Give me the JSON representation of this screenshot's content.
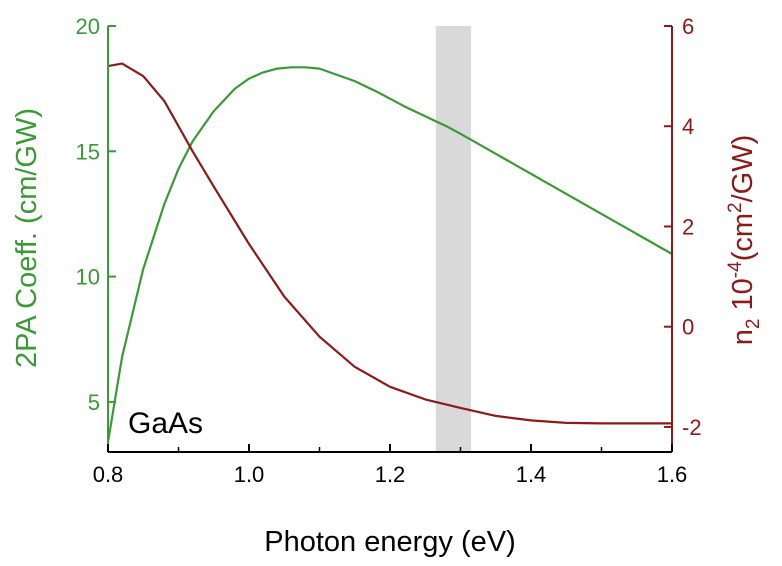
{
  "chart_data": {
    "type": "line",
    "annotation": "GaAs",
    "xlabel": "Photon energy (eV)",
    "ylabel_left": "2PA Coeff. (cm/GW)",
    "ylabel_right_parts": {
      "n": "n",
      "sub": "2",
      "mid": " 10",
      "sup1": "-4",
      "mid2": "(cm",
      "sup2": "2",
      "end": "/GW)"
    },
    "xlim": [
      0.8,
      1.6
    ],
    "ylim_left": [
      3,
      20
    ],
    "ylim_right": [
      -2.5,
      6
    ],
    "x_ticks": [
      "0.8",
      "1.0",
      "1.2",
      "1.4",
      "1.6"
    ],
    "y_left_ticks": [
      "5",
      "10",
      "15",
      "20"
    ],
    "y_right_ticks": [
      "-2",
      "0",
      "2",
      "4",
      "6"
    ],
    "shaded_band_x": [
      1.265,
      1.315
    ],
    "colors": {
      "left_axis": "#3a9a35",
      "right_axis": "#8b1a1a",
      "band": "#d9d9d9",
      "axis": "#000000"
    },
    "grid": false,
    "series": [
      {
        "axis": "left",
        "color": "#3a9a35",
        "x": [
          0.8,
          0.82,
          0.85,
          0.88,
          0.9,
          0.92,
          0.95,
          0.98,
          1.0,
          1.02,
          1.04,
          1.06,
          1.08,
          1.1,
          1.12,
          1.15,
          1.18,
          1.2,
          1.22,
          1.25,
          1.28,
          1.3,
          1.35,
          1.4,
          1.45,
          1.5,
          1.55,
          1.6
        ],
        "values": [
          3.4,
          6.8,
          10.3,
          12.9,
          14.3,
          15.4,
          16.6,
          17.5,
          17.9,
          18.15,
          18.3,
          18.35,
          18.35,
          18.3,
          18.1,
          17.8,
          17.4,
          17.1,
          16.8,
          16.4,
          16.0,
          15.7,
          14.9,
          14.1,
          13.3,
          12.5,
          11.7,
          10.9
        ]
      },
      {
        "axis": "right",
        "color": "#8b1a1a",
        "x": [
          0.8,
          0.82,
          0.85,
          0.88,
          0.9,
          0.92,
          0.95,
          1.0,
          1.05,
          1.1,
          1.15,
          1.2,
          1.25,
          1.3,
          1.35,
          1.4,
          1.45,
          1.5,
          1.55,
          1.6
        ],
        "values": [
          5.2,
          5.25,
          5.0,
          4.5,
          4.0,
          3.5,
          2.8,
          1.65,
          0.6,
          -0.2,
          -0.8,
          -1.2,
          -1.45,
          -1.62,
          -1.78,
          -1.87,
          -1.92,
          -1.93,
          -1.93,
          -1.93
        ]
      }
    ]
  }
}
